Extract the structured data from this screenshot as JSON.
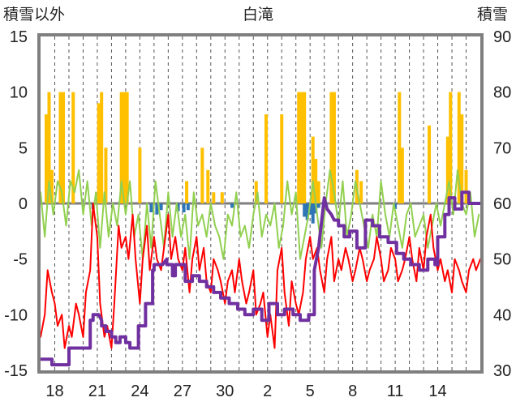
{
  "chart_data": {
    "type": "line",
    "title": "白滝",
    "left_axis_label": "積雪以外",
    "right_axis_label": "積雪",
    "left_ylim": [
      -15,
      15
    ],
    "left_ticks": [
      "15",
      "10",
      "5",
      "0",
      "-5",
      "-10",
      "-15"
    ],
    "right_ylim": [
      30,
      90
    ],
    "right_ticks": [
      "90",
      "80",
      "70",
      "60",
      "50",
      "40",
      "30"
    ],
    "x_ticks": [
      "18",
      "21",
      "24",
      "27",
      "30",
      "2",
      "5",
      "8",
      "11",
      "14"
    ],
    "x_range_days": 31,
    "grid": "vertical-dashed",
    "colors": {
      "precip": "#ffc000",
      "temperature": "#ff0000",
      "wind": "#92d050",
      "snow_depth": "#7030a0",
      "melt": "#2e75b6",
      "frame": "#7f7f7f"
    },
    "series": [
      {
        "key": "precip",
        "type": "bar",
        "x": [
          0.4,
          0.6,
          0.8,
          1.4,
          1.6,
          2.3,
          4.1,
          4.3,
          4.6,
          5.7,
          5.9,
          6.1,
          7.0,
          10.3,
          11.4,
          11.8,
          12.2,
          12.8,
          15.2,
          15.9,
          17.0,
          18.2,
          18.4,
          18.6,
          19.2,
          19.4,
          19.6,
          20.5,
          20.7,
          22.3,
          22.6,
          25.3,
          25.5,
          27.4,
          28.7,
          28.9,
          29.5,
          29.7,
          30.0
        ],
        "values": [
          8,
          10,
          3,
          10,
          10,
          10,
          9,
          10,
          5,
          10,
          10,
          10,
          5,
          2,
          5,
          3,
          1,
          1,
          2,
          8,
          8,
          10,
          10,
          10,
          6,
          4,
          2,
          10,
          10,
          3,
          2,
          10,
          5,
          7,
          6,
          10,
          10,
          8,
          3
        ]
      },
      {
        "key": "melt",
        "type": "bar",
        "x": [
          3.7,
          7.8,
          8.2,
          8.5,
          9.7,
          10.1,
          10.4,
          13.5,
          18.6,
          18.8,
          19.0,
          19.2,
          19.4,
          19.6,
          25.0
        ],
        "values": [
          -0.5,
          -0.8,
          -1.0,
          -0.6,
          -0.7,
          -0.8,
          -0.6,
          -0.4,
          -1.2,
          -1.5,
          -1.0,
          -1.8,
          -0.9,
          -0.4,
          -0.5
        ]
      },
      {
        "key": "wind",
        "type": "line",
        "x": [
          0.0,
          0.3,
          0.6,
          0.9,
          1.2,
          1.5,
          1.8,
          2.1,
          2.4,
          2.7,
          3.0,
          3.3,
          3.6,
          3.9,
          4.2,
          4.5,
          4.8,
          5.1,
          5.4,
          5.7,
          6.0,
          6.3,
          6.6,
          6.9,
          7.2,
          7.5,
          7.8,
          8.1,
          8.4,
          8.7,
          9.0,
          9.3,
          9.6,
          9.9,
          10.2,
          10.5,
          10.8,
          11.1,
          11.4,
          11.7,
          12.0,
          12.3,
          12.6,
          12.9,
          13.2,
          13.5,
          13.8,
          14.1,
          14.4,
          14.7,
          15.0,
          15.3,
          15.6,
          15.9,
          16.2,
          16.5,
          16.8,
          17.1,
          17.4,
          17.7,
          18.0,
          18.3,
          18.6,
          18.9,
          19.2,
          19.5,
          19.8,
          20.1,
          20.4,
          20.7,
          21.0,
          21.3,
          21.6,
          21.9,
          22.2,
          22.5,
          22.8,
          23.1,
          23.4,
          23.7,
          24.0,
          24.3,
          24.6,
          24.9,
          25.2,
          25.5,
          25.8,
          26.1,
          26.4,
          26.7,
          27.0,
          27.3,
          27.6,
          27.9,
          28.2,
          28.5,
          28.8,
          29.1,
          29.4,
          29.7,
          30.0,
          30.3,
          30.6,
          30.9
        ],
        "values": [
          1,
          -3,
          2,
          -1,
          2,
          1,
          -2,
          2,
          1,
          3,
          -1,
          2,
          -2,
          1,
          -4,
          1,
          -3,
          0,
          -2,
          2,
          -1,
          2,
          -3,
          -1,
          -5,
          0,
          -4,
          2,
          -1,
          -4,
          1,
          -3,
          0,
          -3,
          -1,
          -5,
          1,
          -2,
          -1,
          -3,
          0,
          -2,
          -3,
          -5,
          -1,
          -2,
          1,
          -3,
          -2,
          -4,
          -1,
          1,
          -3,
          -1,
          -2,
          0,
          -4,
          -2,
          2,
          -1,
          1,
          -5,
          -3,
          -1,
          2,
          -1,
          -4,
          0,
          3,
          1,
          -2,
          2,
          -3,
          -1,
          2,
          0,
          -2,
          -4,
          -1,
          -3,
          2,
          -1,
          -3,
          0,
          -2,
          -4,
          -1,
          0,
          -3,
          -2,
          -1,
          -4,
          -2,
          0,
          -2,
          0,
          2,
          -1,
          3,
          0,
          -1,
          1,
          -3,
          -1
        ]
      },
      {
        "key": "temperature",
        "type": "line",
        "x": [
          0.0,
          0.3,
          0.5,
          0.8,
          1.0,
          1.2,
          1.5,
          1.7,
          2.0,
          2.2,
          2.5,
          2.7,
          3.0,
          3.2,
          3.5,
          3.7,
          4.0,
          4.2,
          4.5,
          4.7,
          5.0,
          5.2,
          5.5,
          5.7,
          6.0,
          6.2,
          6.5,
          6.7,
          7.0,
          7.2,
          7.5,
          7.7,
          8.0,
          8.2,
          8.5,
          8.7,
          9.0,
          9.2,
          9.5,
          9.7,
          10.0,
          10.2,
          10.5,
          10.7,
          11.0,
          11.2,
          11.5,
          11.7,
          12.0,
          12.2,
          12.5,
          12.7,
          13.0,
          13.2,
          13.5,
          13.7,
          14.0,
          14.2,
          14.5,
          14.7,
          15.0,
          15.2,
          15.5,
          15.7,
          16.0,
          16.2,
          16.5,
          16.7,
          17.0,
          17.2,
          17.5,
          17.7,
          18.0,
          18.2,
          18.5,
          18.7,
          19.0,
          19.2,
          19.5,
          19.7,
          20.0,
          20.2,
          20.5,
          20.7,
          21.0,
          21.2,
          21.5,
          21.7,
          22.0,
          22.2,
          22.5,
          22.7,
          23.0,
          23.2,
          23.5,
          23.7,
          24.0,
          24.2,
          24.5,
          24.7,
          25.0,
          25.2,
          25.5,
          25.7,
          26.0,
          26.2,
          26.5,
          26.7,
          27.0,
          27.2,
          27.5,
          27.7,
          28.0,
          28.2,
          28.5,
          28.7,
          29.0,
          29.2,
          29.5,
          29.7,
          30.0,
          30.2,
          30.5,
          30.7,
          31.0
        ],
        "values": [
          -12,
          -10,
          -6,
          -8,
          -9,
          -11,
          -10,
          -13,
          -11,
          -12,
          -9,
          -10,
          -12,
          -8,
          -6,
          0,
          -3,
          -9,
          -12,
          -11,
          -13,
          -9,
          -2,
          -4,
          -3,
          -5,
          -1,
          -5,
          -9,
          -5,
          -2,
          -6,
          -3,
          -5,
          -6,
          -4,
          -1,
          -5,
          -3,
          -5,
          -6,
          -4,
          -8,
          -5,
          -3,
          -6,
          -4,
          -7,
          -8,
          -5,
          -6,
          -7,
          -9,
          -7,
          -6,
          -8,
          -5,
          -7,
          -9,
          -8,
          -6,
          -10,
          -9,
          -8,
          -12,
          -10,
          -13,
          -6,
          -4,
          -8,
          -11,
          -7,
          -9,
          -10,
          -8,
          -5,
          -3,
          -5,
          -4,
          -6,
          -8,
          -5,
          -3,
          -7,
          -5,
          -6,
          -4,
          -5,
          -7,
          -6,
          -4,
          -5,
          -7,
          -6,
          -5,
          -3,
          -5,
          -7,
          -6,
          -4,
          -5,
          -7,
          -6,
          -5,
          -3,
          -5,
          -7,
          -4,
          -6,
          -3,
          -1,
          -4,
          -6,
          -5,
          -7,
          -6,
          -8,
          -5,
          -6,
          -7,
          -8,
          -6,
          -5,
          -6,
          -5
        ]
      },
      {
        "key": "snow_depth",
        "type": "line",
        "axis": "right",
        "x": [
          0.0,
          0.8,
          0.8,
          2.0,
          2.0,
          3.5,
          3.5,
          3.7,
          3.7,
          4.1,
          4.3,
          4.3,
          4.6,
          4.6,
          5.0,
          5.0,
          5.3,
          5.3,
          5.6,
          5.6,
          6.0,
          6.0,
          6.3,
          6.3,
          6.9,
          6.9,
          7.4,
          7.4,
          7.9,
          7.9,
          8.0,
          8.0,
          8.6,
          8.9,
          8.9,
          9.3,
          9.3,
          9.5,
          9.5,
          10.2,
          10.2,
          10.7,
          10.7,
          11.2,
          11.2,
          11.7,
          11.7,
          12.2,
          12.2,
          12.7,
          12.7,
          13.3,
          13.3,
          13.9,
          13.9,
          14.4,
          14.4,
          15.0,
          15.0,
          15.6,
          15.6,
          16.1,
          16.1,
          16.7,
          16.7,
          17.2,
          17.2,
          17.8,
          17.8,
          18.3,
          18.3,
          18.9,
          18.9,
          19.3,
          19.3,
          19.6,
          20.0,
          20.2,
          20.5,
          20.7,
          21.0,
          21.0,
          21.4,
          21.4,
          21.8,
          21.8,
          22.3,
          22.3,
          22.9,
          22.9,
          23.4,
          23.4,
          23.9,
          23.9,
          24.5,
          24.5,
          25.1,
          25.1,
          25.6,
          25.6,
          26.1,
          26.1,
          26.7,
          26.7,
          27.3,
          27.3,
          27.8,
          27.8,
          28.0,
          28.0,
          28.5,
          28.5,
          28.8,
          28.8,
          29.2,
          29.2,
          29.7,
          29.7,
          30.2,
          30.2,
          31.0
        ],
        "values": [
          32,
          32,
          31,
          31,
          34,
          34,
          39,
          39,
          40,
          40,
          39,
          38,
          38,
          37,
          37,
          36,
          36,
          35,
          35,
          36,
          36,
          35,
          35,
          34,
          34,
          38,
          38,
          42,
          42,
          48,
          48,
          49,
          49,
          50,
          49,
          49,
          47,
          47,
          49,
          49,
          46,
          46,
          47,
          47,
          46,
          46,
          45,
          45,
          44,
          44,
          43,
          43,
          42,
          42,
          41,
          41,
          40,
          40,
          41,
          41,
          39,
          39,
          42,
          42,
          40,
          40,
          41,
          41,
          40,
          40,
          39,
          39,
          40,
          40,
          48,
          52,
          61,
          59,
          58,
          57,
          57,
          56,
          56,
          54,
          54,
          55,
          55,
          52,
          52,
          57,
          57,
          56,
          56,
          54,
          54,
          53,
          53,
          51,
          51,
          50,
          50,
          49,
          49,
          48,
          48,
          50,
          50,
          49,
          49,
          54,
          54,
          58,
          58,
          61,
          61,
          59,
          59,
          62,
          62,
          60,
          60
        ]
      }
    ]
  }
}
